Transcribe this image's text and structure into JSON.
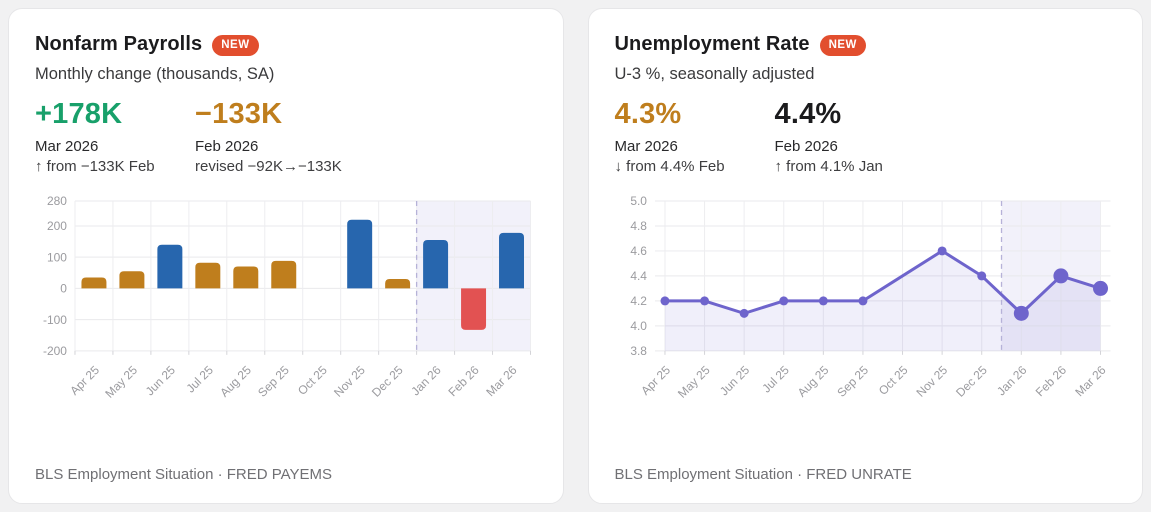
{
  "page_background": "#f1f1f2",
  "cards": [
    {
      "title": "Nonfarm Payrolls",
      "badge": "NEW",
      "badge_color": "#e24e2e",
      "subtitle": "Monthly change (thousands, SA)",
      "stats": [
        {
          "value": "+178K",
          "value_color": "#18a06a",
          "period": "Mar 2026",
          "note": "↑ from −133K Feb"
        },
        {
          "value": "−133K",
          "value_color": "#bf7e1d",
          "period": "Feb 2026",
          "note": "revised −92K→−133K"
        }
      ],
      "source": "BLS Employment Situation · FRED PAYEMS"
    },
    {
      "title": "Unemployment Rate",
      "badge": "NEW",
      "badge_color": "#e24e2e",
      "subtitle": "U-3 %, seasonally adjusted",
      "stats": [
        {
          "value": "4.3%",
          "value_color": "#bf7e1d",
          "period": "Mar 2026",
          "note": "↓ from 4.4% Feb"
        },
        {
          "value": "4.4%",
          "value_color": "#1b1b1d",
          "period": "Feb 2026",
          "note": "↑ from 4.1% Jan"
        }
      ],
      "source": "BLS Employment Situation · FRED UNRATE"
    }
  ],
  "chart_data": [
    {
      "type": "bar",
      "title": "Nonfarm Payrolls",
      "categories": [
        "Apr 25",
        "May 25",
        "Jun 25",
        "Jul 25",
        "Aug 25",
        "Sep 25",
        "Oct 25",
        "Nov 25",
        "Dec 25",
        "Jan 26",
        "Feb 26",
        "Mar 26"
      ],
      "values": [
        35,
        55,
        140,
        82,
        70,
        88,
        null,
        220,
        30,
        155,
        -133,
        178
      ],
      "bar_colors": [
        "#bf7e1d",
        "#bf7e1d",
        "#2766ae",
        "#bf7e1d",
        "#bf7e1d",
        "#bf7e1d",
        null,
        "#2766ae",
        "#bf7e1d",
        "#2766ae",
        "#e25252",
        "#2766ae"
      ],
      "ylim": [
        -200,
        280
      ],
      "yticks": [
        280,
        200,
        100,
        0,
        -100,
        -200
      ],
      "ytick_format": "int",
      "grid": true,
      "legend": "none",
      "highlight_start_index": 9,
      "highlight_fill": "rgba(110,100,204,0.09)",
      "divider_color": "#b6b2d8",
      "note": "no bar plotted for Oct 25; lavender band with dashed divider marks Jan 26–Mar 26"
    },
    {
      "type": "line",
      "title": "Unemployment Rate",
      "categories": [
        "Apr 25",
        "May 25",
        "Jun 25",
        "Jul 25",
        "Aug 25",
        "Sep 25",
        "Oct 25",
        "Nov 25",
        "Dec 25",
        "Jan 26",
        "Feb 26",
        "Mar 26"
      ],
      "values": [
        4.2,
        4.2,
        4.1,
        4.2,
        4.2,
        4.2,
        null,
        4.6,
        4.4,
        4.1,
        4.4,
        4.3
      ],
      "ylim": [
        3.8,
        5.0
      ],
      "yticks": [
        5.0,
        4.8,
        4.6,
        4.4,
        4.2,
        4.0,
        3.8
      ],
      "ytick_format": "1dp",
      "grid": true,
      "legend": "none",
      "line_color": "#6e64cc",
      "area_opacity": 0.1,
      "highlight_start_index": 9,
      "highlight_fill": "rgba(110,100,204,0.09)",
      "divider_color": "#b6b2d8",
      "note": "no point plotted for Oct 25; markers from Jan 26 onward are enlarged"
    }
  ]
}
